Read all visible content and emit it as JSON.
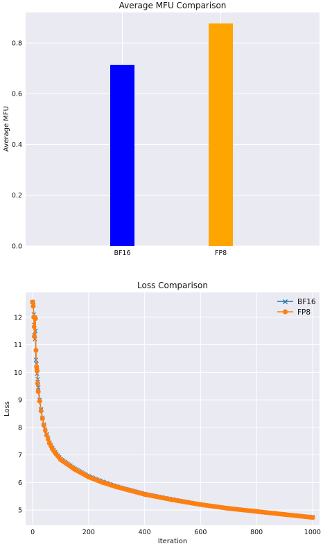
{
  "chart_data": [
    {
      "type": "bar",
      "title": "Average MFU Comparison",
      "xlabel": "",
      "ylabel": "Average MFU",
      "categories": [
        "BF16",
        "FP8"
      ],
      "values": [
        0.713,
        0.877
      ],
      "colors": [
        "#0000ff",
        "#ffa500"
      ],
      "ylim": [
        0,
        0.92
      ],
      "yticks": [
        "0.0",
        "0.2",
        "0.4",
        "0.6",
        "0.8"
      ],
      "grid": true
    },
    {
      "type": "line",
      "title": "Loss Comparison",
      "xlabel": "Iteration",
      "ylabel": "Loss",
      "xlim": [
        -25,
        1025
      ],
      "ylim": [
        4.45,
        12.9
      ],
      "xticks": [
        "0",
        "200",
        "400",
        "600",
        "800",
        "1000"
      ],
      "yticks": [
        "5",
        "6",
        "7",
        "8",
        "9",
        "10",
        "11",
        "12"
      ],
      "grid": true,
      "legend_position": "top-right",
      "series": [
        {
          "name": "BF16",
          "color": "#1f77b4",
          "marker": "x",
          "x": [
            0,
            2,
            4,
            6,
            8,
            10,
            12,
            14,
            16,
            18,
            20,
            25,
            30,
            35,
            40,
            50,
            60,
            70,
            80,
            100,
            150,
            200,
            250,
            300,
            400,
            500,
            600,
            700,
            800,
            900,
            1000
          ],
          "y": [
            12.55,
            12.45,
            12.1,
            11.35,
            11.2,
            11.5,
            10.45,
            10.3,
            9.95,
            9.75,
            9.45,
            9.0,
            8.65,
            8.35,
            8.1,
            7.75,
            7.45,
            7.25,
            7.1,
            6.85,
            6.5,
            6.22,
            6.02,
            5.85,
            5.58,
            5.38,
            5.2,
            5.06,
            4.95,
            4.84,
            4.74
          ]
        },
        {
          "name": "FP8",
          "color": "#ff7f0e",
          "marker": "o",
          "x": [
            0,
            2,
            4,
            6,
            8,
            10,
            12,
            14,
            16,
            18,
            20,
            25,
            30,
            35,
            40,
            50,
            60,
            70,
            80,
            100,
            150,
            200,
            250,
            300,
            400,
            500,
            600,
            700,
            800,
            900,
            1000
          ],
          "y": [
            12.55,
            12.4,
            12.0,
            11.3,
            12.0,
            11.95,
            10.8,
            10.2,
            10.05,
            9.6,
            9.3,
            8.95,
            8.6,
            8.32,
            8.08,
            7.72,
            7.43,
            7.23,
            7.08,
            6.83,
            6.48,
            6.2,
            6.0,
            5.84,
            5.57,
            5.37,
            5.2,
            5.06,
            4.95,
            4.84,
            4.73
          ]
        }
      ]
    }
  ]
}
